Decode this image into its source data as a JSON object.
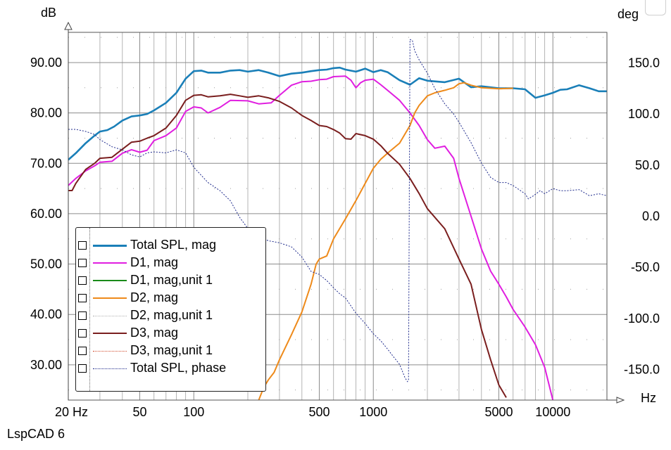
{
  "window": {
    "footer_text": "LspCAD 6"
  },
  "chart_data": {
    "type": "line",
    "x_scale": "log",
    "xlim": [
      20,
      20000
    ],
    "ylim_left": [
      23,
      96
    ],
    "ylim_right": [
      -180,
      180
    ],
    "ylabel_left_unit": "dB",
    "ylabel_right_unit": "deg",
    "xlabel_unit": "Hz",
    "grid": true,
    "legend_position": "bottom-left",
    "x_ticks": [
      {
        "value": 20,
        "label": "20 Hz"
      },
      {
        "value": 50,
        "label": "50"
      },
      {
        "value": 100,
        "label": "100"
      },
      {
        "value": 500,
        "label": "500"
      },
      {
        "value": 1000,
        "label": "1000"
      },
      {
        "value": 5000,
        "label": "5000"
      },
      {
        "value": 10000,
        "label": "10000"
      }
    ],
    "y_ticks_left": [
      "90.00",
      "80.00",
      "70.00",
      "60.00",
      "50.00",
      "40.00",
      "30.00"
    ],
    "y_ticks_left_values": [
      90,
      80,
      70,
      60,
      50,
      40,
      30
    ],
    "y_ticks_right": [
      "150.0",
      "100.0",
      "50.0",
      "0.0",
      "-50.0",
      "-100.0",
      "-150.0"
    ],
    "y_ticks_right_values": [
      150,
      100,
      50,
      0,
      -50,
      -100,
      -150
    ],
    "series": [
      {
        "name": "Total SPL, mag",
        "axis": "left",
        "color": "#1a7fb8",
        "dash": "none",
        "width": 2.6,
        "points": [
          [
            20,
            70.7
          ],
          [
            22,
            72
          ],
          [
            25,
            74
          ],
          [
            28,
            75.5
          ],
          [
            30,
            76.3
          ],
          [
            33,
            76.6
          ],
          [
            36,
            77.3
          ],
          [
            40,
            78.5
          ],
          [
            45,
            79.3
          ],
          [
            50,
            79.5
          ],
          [
            55,
            79.8
          ],
          [
            60,
            80.5
          ],
          [
            70,
            82
          ],
          [
            80,
            84
          ],
          [
            90,
            86.8
          ],
          [
            100,
            88.3
          ],
          [
            110,
            88.4
          ],
          [
            120,
            88
          ],
          [
            140,
            88
          ],
          [
            160,
            88.4
          ],
          [
            180,
            88.5
          ],
          [
            200,
            88.2
          ],
          [
            230,
            88.5
          ],
          [
            260,
            88
          ],
          [
            300,
            87.3
          ],
          [
            350,
            87.8
          ],
          [
            400,
            88
          ],
          [
            450,
            88.3
          ],
          [
            500,
            88.5
          ],
          [
            550,
            88.6
          ],
          [
            600,
            88.9
          ],
          [
            650,
            89
          ],
          [
            700,
            88.6
          ],
          [
            800,
            88.2
          ],
          [
            900,
            88.8
          ],
          [
            1000,
            88.1
          ],
          [
            1100,
            88.5
          ],
          [
            1200,
            88.1
          ],
          [
            1400,
            86.5
          ],
          [
            1600,
            85.6
          ],
          [
            1800,
            86.9
          ],
          [
            2000,
            86.4
          ],
          [
            2500,
            86.1
          ],
          [
            3000,
            86.8
          ],
          [
            3500,
            85.1
          ],
          [
            4000,
            85.3
          ],
          [
            5000,
            84.9
          ],
          [
            6000,
            84.9
          ],
          [
            7000,
            84.7
          ],
          [
            8000,
            83
          ],
          [
            9000,
            83.5
          ],
          [
            10000,
            84
          ],
          [
            11000,
            84.6
          ],
          [
            12000,
            84.7
          ],
          [
            14000,
            85.5
          ],
          [
            16000,
            84.9
          ],
          [
            18000,
            84.3
          ],
          [
            20000,
            84.3
          ]
        ]
      },
      {
        "name": "D1, mag",
        "axis": "left",
        "color": "#e01ee0",
        "dash": "none",
        "width": 2,
        "points": [
          [
            20,
            65.6
          ],
          [
            22,
            67
          ],
          [
            25,
            68.5
          ],
          [
            28,
            69.5
          ],
          [
            30,
            70.2
          ],
          [
            35,
            70.4
          ],
          [
            40,
            72
          ],
          [
            45,
            72.7
          ],
          [
            50,
            72.2
          ],
          [
            55,
            72.6
          ],
          [
            60,
            74.5
          ],
          [
            70,
            75.5
          ],
          [
            80,
            77
          ],
          [
            90,
            80.3
          ],
          [
            100,
            81.2
          ],
          [
            110,
            81
          ],
          [
            120,
            80
          ],
          [
            140,
            81.1
          ],
          [
            160,
            82.5
          ],
          [
            200,
            82.4
          ],
          [
            230,
            81.8
          ],
          [
            270,
            82
          ],
          [
            300,
            83.5
          ],
          [
            350,
            85.5
          ],
          [
            400,
            86.2
          ],
          [
            450,
            86.3
          ],
          [
            500,
            86.6
          ],
          [
            550,
            86.7
          ],
          [
            600,
            87.2
          ],
          [
            700,
            87.3
          ],
          [
            750,
            86.5
          ],
          [
            800,
            85
          ],
          [
            850,
            86
          ],
          [
            900,
            86.5
          ],
          [
            1000,
            86.7
          ],
          [
            1100,
            85.6
          ],
          [
            1200,
            84.5
          ],
          [
            1400,
            82.5
          ],
          [
            1600,
            80
          ],
          [
            1800,
            77.5
          ],
          [
            2000,
            74.7
          ],
          [
            2200,
            73
          ],
          [
            2500,
            73.4
          ],
          [
            2800,
            71
          ],
          [
            3000,
            67
          ],
          [
            3500,
            59.5
          ],
          [
            4000,
            53
          ],
          [
            4500,
            48.6
          ],
          [
            5000,
            46
          ],
          [
            5500,
            43.5
          ],
          [
            6000,
            41
          ],
          [
            7000,
            37.5
          ],
          [
            8000,
            34
          ],
          [
            9000,
            29.5
          ],
          [
            10000,
            23
          ]
        ]
      },
      {
        "name": "D1, mag,unit 1",
        "axis": "left",
        "color": "#1a8a1a",
        "dash": "none",
        "width": 2,
        "points": []
      },
      {
        "name": "D2, mag",
        "axis": "left",
        "color": "#ee8a1a",
        "dash": "none",
        "width": 2,
        "points": [
          [
            230,
            23
          ],
          [
            245,
            25.5
          ],
          [
            260,
            27
          ],
          [
            280,
            28.5
          ],
          [
            300,
            31
          ],
          [
            350,
            36
          ],
          [
            400,
            40.5
          ],
          [
            450,
            46
          ],
          [
            480,
            50
          ],
          [
            500,
            51
          ],
          [
            550,
            51.6
          ],
          [
            600,
            55
          ],
          [
            700,
            59
          ],
          [
            800,
            62.6
          ],
          [
            900,
            66
          ],
          [
            1000,
            69
          ],
          [
            1100,
            70.8
          ],
          [
            1200,
            72
          ],
          [
            1400,
            74
          ],
          [
            1600,
            77.5
          ],
          [
            1700,
            80
          ],
          [
            1800,
            81.5
          ],
          [
            2000,
            83.4
          ],
          [
            2200,
            84
          ],
          [
            2500,
            84.5
          ],
          [
            2800,
            85
          ],
          [
            3000,
            85.8
          ],
          [
            3200,
            86
          ],
          [
            3500,
            85.5
          ],
          [
            4000,
            85
          ],
          [
            5000,
            84.8
          ],
          [
            6000,
            84.9
          ]
        ]
      },
      {
        "name": "D2, mag,unit 1",
        "axis": "left",
        "color": "#b0b0b0",
        "dash": "2,2",
        "width": 1,
        "points": []
      },
      {
        "name": "D3, mag",
        "axis": "left",
        "color": "#7a1e1e",
        "dash": "none",
        "width": 2,
        "points": [
          [
            20,
            64.6
          ],
          [
            21,
            64.6
          ],
          [
            22,
            66
          ],
          [
            25,
            68.8
          ],
          [
            28,
            70
          ],
          [
            30,
            71
          ],
          [
            35,
            71.2
          ],
          [
            40,
            72.8
          ],
          [
            45,
            74.2
          ],
          [
            50,
            74.4
          ],
          [
            55,
            75
          ],
          [
            60,
            75.5
          ],
          [
            70,
            77
          ],
          [
            80,
            79.5
          ],
          [
            90,
            82.5
          ],
          [
            100,
            83.5
          ],
          [
            110,
            83.6
          ],
          [
            120,
            83.2
          ],
          [
            140,
            83.4
          ],
          [
            160,
            83.7
          ],
          [
            180,
            83.4
          ],
          [
            200,
            83.1
          ],
          [
            230,
            83.4
          ],
          [
            260,
            83
          ],
          [
            300,
            82.3
          ],
          [
            350,
            81
          ],
          [
            400,
            79.5
          ],
          [
            450,
            78.5
          ],
          [
            500,
            77.5
          ],
          [
            550,
            77.3
          ],
          [
            600,
            76.7
          ],
          [
            650,
            76
          ],
          [
            700,
            74.9
          ],
          [
            750,
            74.8
          ],
          [
            800,
            75.9
          ],
          [
            900,
            75.5
          ],
          [
            1000,
            74.8
          ],
          [
            1100,
            73.5
          ],
          [
            1200,
            72
          ],
          [
            1400,
            69.8
          ],
          [
            1600,
            67
          ],
          [
            1800,
            64
          ],
          [
            2000,
            61
          ],
          [
            2500,
            57
          ],
          [
            3000,
            51
          ],
          [
            3500,
            46
          ],
          [
            4000,
            37
          ],
          [
            4500,
            31
          ],
          [
            5000,
            26
          ],
          [
            5500,
            23.5
          ]
        ]
      },
      {
        "name": "D3, mag,unit 1",
        "axis": "left",
        "color": "#d14a2a",
        "dash": "2,2",
        "width": 1,
        "points": []
      },
      {
        "name": "Total SPL, phase",
        "axis": "right",
        "color": "#1e2a8c",
        "dash": "2,2",
        "width": 1,
        "points": [
          [
            20,
            85
          ],
          [
            22,
            85
          ],
          [
            25,
            83
          ],
          [
            28,
            80
          ],
          [
            30,
            75
          ],
          [
            35,
            68
          ],
          [
            40,
            65
          ],
          [
            45,
            60
          ],
          [
            50,
            58
          ],
          [
            55,
            62
          ],
          [
            60,
            63
          ],
          [
            70,
            62
          ],
          [
            80,
            65
          ],
          [
            90,
            62
          ],
          [
            100,
            48
          ],
          [
            110,
            40
          ],
          [
            120,
            33
          ],
          [
            140,
            25
          ],
          [
            160,
            15
          ],
          [
            180,
            -1
          ],
          [
            200,
            -12
          ],
          [
            230,
            -20
          ],
          [
            260,
            -24
          ],
          [
            300,
            -26
          ],
          [
            350,
            -30
          ],
          [
            400,
            -40
          ],
          [
            450,
            -54
          ],
          [
            500,
            -57
          ],
          [
            550,
            -63
          ],
          [
            600,
            -70
          ],
          [
            650,
            -76
          ],
          [
            700,
            -80
          ],
          [
            800,
            -95
          ],
          [
            900,
            -105
          ],
          [
            1000,
            -115
          ],
          [
            1100,
            -122
          ],
          [
            1200,
            -130
          ],
          [
            1300,
            -138
          ],
          [
            1400,
            -145
          ],
          [
            1500,
            -158
          ],
          [
            1550,
            -162
          ],
          [
            1570,
            -160
          ],
          [
            1600,
            173
          ],
          [
            1650,
            172
          ],
          [
            1700,
            162
          ],
          [
            1800,
            153
          ],
          [
            2000,
            140
          ],
          [
            2200,
            125
          ],
          [
            2500,
            110
          ],
          [
            2800,
            100
          ],
          [
            3000,
            92
          ],
          [
            3500,
            72
          ],
          [
            4000,
            52
          ],
          [
            4500,
            38
          ],
          [
            5000,
            33
          ],
          [
            5500,
            33
          ],
          [
            6000,
            30
          ],
          [
            7000,
            22
          ],
          [
            7300,
            17
          ],
          [
            7800,
            20
          ],
          [
            8500,
            25
          ],
          [
            9000,
            22
          ],
          [
            10000,
            27
          ],
          [
            11000,
            25
          ],
          [
            12000,
            25
          ],
          [
            14000,
            26
          ],
          [
            16000,
            20
          ],
          [
            18000,
            22
          ],
          [
            20000,
            20
          ]
        ]
      }
    ]
  }
}
